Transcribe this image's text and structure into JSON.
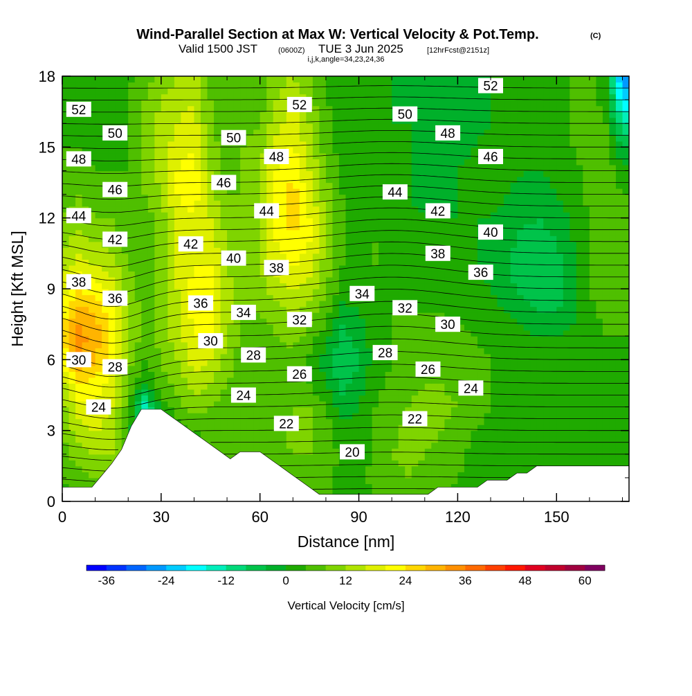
{
  "title": {
    "main": "Wind-Parallel Section at Max W: Vertical Velocity & Pot.Temp.",
    "copyright": "(C)",
    "valid_prefix": "Valid 1500 JST",
    "valid_zulu": "(0600Z)",
    "valid_date": "TUE 3 Jun 2025",
    "forecast": "[12hrFcst@2151z]",
    "indices": "i,j,k,angle=34,23,24,36"
  },
  "chart_data": {
    "type": "contour-section",
    "xlabel": "Distance [nm]",
    "ylabel": "Height [Kft MSL]",
    "xlim": [
      0,
      172
    ],
    "ylim": [
      0,
      18
    ],
    "x_ticks": [
      0,
      30,
      60,
      90,
      120,
      150
    ],
    "y_ticks": [
      0,
      3,
      6,
      9,
      12,
      15,
      18
    ],
    "colorbar": {
      "label": "Vertical Velocity [cm/s]",
      "tick_labels": [
        "-36",
        "-24",
        "-12",
        "0",
        "12",
        "24",
        "36",
        "48",
        "60"
      ],
      "tick_values": [
        -36,
        -24,
        -12,
        0,
        12,
        24,
        36,
        48,
        60
      ],
      "bins": [
        -40,
        -36,
        -32,
        -28,
        -24,
        -20,
        -16,
        -12,
        -8,
        -4,
        0,
        4,
        8,
        12,
        16,
        20,
        24,
        28,
        32,
        36,
        40,
        44,
        48,
        52,
        56,
        60,
        64
      ],
      "colors": [
        "#0000ff",
        "#0033ff",
        "#0066ff",
        "#0099ff",
        "#00ccff",
        "#00ffff",
        "#00eebb",
        "#00d97a",
        "#00c34a",
        "#00b02a",
        "#1faa00",
        "#4fbf00",
        "#7fd400",
        "#b0e400",
        "#dff000",
        "#ffff00",
        "#ffd700",
        "#ffb400",
        "#ff9000",
        "#ff6a00",
        "#ff4000",
        "#ff1800",
        "#e00020",
        "#c0002c",
        "#a00040",
        "#800060"
      ]
    },
    "vertical_velocity_cm_s": {
      "x": [
        0,
        5,
        10,
        15,
        20,
        25,
        30,
        35,
        40,
        45,
        50,
        55,
        60,
        65,
        70,
        75,
        80,
        85,
        90,
        95,
        100,
        105,
        110,
        115,
        120,
        125,
        130,
        135,
        140,
        145,
        150,
        155,
        160,
        165,
        170
      ],
      "y": [
        0,
        1,
        2,
        3,
        4,
        5,
        6,
        7,
        8,
        9,
        10,
        11,
        12,
        13,
        14,
        15,
        16,
        17,
        18
      ],
      "values": [
        [
          2,
          2,
          3,
          2,
          2,
          0,
          0,
          0,
          0,
          2,
          4,
          4,
          4,
          5,
          4,
          4,
          4,
          3,
          3,
          4,
          6,
          6,
          5,
          4,
          3,
          2,
          2,
          1,
          1,
          1,
          1,
          1,
          1,
          1,
          1
        ],
        [
          4,
          6,
          8,
          8,
          6,
          0,
          0,
          0,
          0,
          3,
          4,
          4,
          5,
          6,
          6,
          6,
          5,
          3,
          3,
          5,
          7,
          8,
          7,
          6,
          4,
          3,
          2,
          1,
          1,
          1,
          1,
          1,
          1,
          1,
          1
        ],
        [
          6,
          10,
          12,
          12,
          6,
          -10,
          0,
          0,
          0,
          4,
          5,
          5,
          6,
          7,
          8,
          8,
          6,
          3,
          2,
          5,
          8,
          9,
          8,
          7,
          5,
          3,
          2,
          2,
          1,
          1,
          1,
          1,
          1,
          1,
          1
        ],
        [
          8,
          14,
          16,
          14,
          4,
          -20,
          -2,
          2,
          4,
          6,
          6,
          6,
          6,
          7,
          9,
          9,
          6,
          2,
          1,
          4,
          7,
          9,
          9,
          8,
          6,
          4,
          3,
          2,
          1,
          1,
          1,
          1,
          1,
          1,
          1
        ],
        [
          10,
          18,
          20,
          16,
          6,
          -14,
          2,
          6,
          10,
          8,
          6,
          6,
          6,
          6,
          8,
          8,
          4,
          -2,
          0,
          4,
          6,
          8,
          10,
          9,
          8,
          6,
          4,
          2,
          1,
          1,
          1,
          1,
          1,
          1,
          1
        ],
        [
          14,
          24,
          22,
          18,
          8,
          0,
          6,
          10,
          14,
          12,
          8,
          6,
          6,
          6,
          6,
          4,
          0,
          -6,
          -2,
          3,
          5,
          6,
          8,
          8,
          7,
          6,
          4,
          3,
          2,
          1,
          1,
          2,
          2,
          2,
          2
        ],
        [
          20,
          32,
          28,
          22,
          10,
          4,
          8,
          12,
          18,
          16,
          10,
          6,
          6,
          6,
          6,
          3,
          -2,
          -8,
          -4,
          2,
          4,
          5,
          6,
          6,
          6,
          5,
          4,
          3,
          2,
          1,
          1,
          2,
          3,
          3,
          3
        ],
        [
          24,
          34,
          30,
          24,
          12,
          6,
          10,
          14,
          20,
          20,
          12,
          6,
          6,
          8,
          10,
          6,
          2,
          -6,
          -2,
          2,
          4,
          4,
          5,
          5,
          5,
          4,
          3,
          2,
          1,
          0,
          0,
          1,
          3,
          4,
          4
        ],
        [
          22,
          30,
          28,
          22,
          12,
          6,
          10,
          14,
          22,
          22,
          14,
          8,
          8,
          10,
          12,
          10,
          6,
          -2,
          0,
          2,
          4,
          4,
          4,
          4,
          3,
          2,
          1,
          0,
          -2,
          -4,
          -4,
          -1,
          3,
          5,
          6
        ],
        [
          18,
          24,
          22,
          18,
          10,
          6,
          10,
          16,
          22,
          22,
          14,
          8,
          10,
          14,
          16,
          14,
          8,
          2,
          2,
          3,
          4,
          3,
          3,
          3,
          2,
          1,
          0,
          -2,
          -6,
          -8,
          -6,
          -2,
          4,
          6,
          7
        ],
        [
          14,
          18,
          16,
          14,
          8,
          6,
          10,
          16,
          20,
          20,
          12,
          8,
          12,
          18,
          20,
          18,
          10,
          4,
          3,
          4,
          4,
          3,
          2,
          2,
          1,
          0,
          -1,
          -3,
          -8,
          -8,
          -6,
          -2,
          4,
          6,
          7
        ],
        [
          10,
          14,
          12,
          10,
          6,
          6,
          10,
          16,
          20,
          18,
          12,
          8,
          12,
          20,
          24,
          20,
          12,
          4,
          3,
          4,
          3,
          2,
          1,
          1,
          0,
          0,
          -1,
          -2,
          -6,
          -6,
          -4,
          0,
          4,
          6,
          6
        ],
        [
          8,
          10,
          8,
          8,
          4,
          6,
          10,
          18,
          20,
          16,
          10,
          8,
          12,
          22,
          26,
          20,
          12,
          4,
          2,
          3,
          2,
          1,
          0,
          0,
          0,
          0,
          0,
          -1,
          -3,
          -4,
          -2,
          1,
          4,
          6,
          5
        ],
        [
          6,
          8,
          6,
          6,
          4,
          8,
          12,
          20,
          22,
          14,
          8,
          8,
          12,
          22,
          26,
          18,
          10,
          4,
          2,
          2,
          1,
          0,
          -1,
          -1,
          0,
          1,
          1,
          0,
          -1,
          -2,
          0,
          2,
          5,
          6,
          4
        ],
        [
          4,
          6,
          4,
          4,
          4,
          8,
          14,
          20,
          22,
          12,
          6,
          8,
          12,
          20,
          24,
          16,
          8,
          3,
          2,
          2,
          1,
          0,
          -1,
          -2,
          0,
          1,
          2,
          1,
          0,
          0,
          1,
          3,
          5,
          6,
          2
        ],
        [
          4,
          4,
          3,
          3,
          4,
          10,
          14,
          18,
          20,
          10,
          6,
          8,
          10,
          18,
          20,
          14,
          6,
          2,
          2,
          1,
          1,
          0,
          -1,
          -2,
          -1,
          0,
          1,
          1,
          1,
          1,
          2,
          4,
          6,
          6,
          -4
        ],
        [
          3,
          3,
          2,
          2,
          4,
          10,
          14,
          16,
          18,
          8,
          5,
          6,
          8,
          14,
          18,
          12,
          6,
          2,
          1,
          1,
          0,
          0,
          -1,
          -2,
          -2,
          -1,
          0,
          1,
          1,
          2,
          3,
          4,
          6,
          4,
          -12
        ],
        [
          2,
          2,
          2,
          2,
          4,
          8,
          12,
          14,
          16,
          8,
          4,
          5,
          6,
          12,
          16,
          10,
          4,
          2,
          1,
          0,
          0,
          -1,
          -1,
          -2,
          -2,
          -1,
          0,
          1,
          2,
          2,
          3,
          4,
          6,
          2,
          -20
        ],
        [
          2,
          2,
          1,
          1,
          3,
          6,
          10,
          12,
          14,
          6,
          4,
          4,
          5,
          10,
          12,
          8,
          4,
          1,
          1,
          0,
          0,
          -1,
          -1,
          -2,
          -2,
          -1,
          0,
          1,
          2,
          2,
          3,
          4,
          5,
          0,
          -28
        ]
      ]
    },
    "terrain_kft": {
      "x": [
        0,
        3,
        6,
        9,
        12,
        15,
        18,
        21,
        24,
        27,
        30,
        33,
        36,
        39,
        42,
        45,
        48,
        51,
        54,
        57,
        60,
        63,
        66,
        69,
        72,
        75,
        78,
        81,
        84,
        87,
        90,
        93,
        96,
        99,
        102,
        105,
        108,
        111,
        114,
        117,
        120,
        123,
        126,
        129,
        132,
        135,
        138,
        141,
        144,
        147,
        150,
        153,
        156,
        159,
        162,
        165,
        168,
        172
      ],
      "height": [
        0.6,
        0.6,
        0.6,
        0.6,
        1.1,
        1.6,
        2.2,
        3.2,
        3.9,
        3.9,
        3.9,
        3.6,
        3.3,
        3.0,
        2.7,
        2.4,
        2.1,
        1.8,
        2.1,
        2.1,
        2.1,
        1.8,
        1.5,
        1.2,
        0.9,
        0.6,
        0.3,
        0.3,
        0.3,
        0.3,
        0.3,
        0.3,
        0.3,
        0.3,
        0.3,
        0.3,
        0.3,
        0.3,
        0.6,
        0.6,
        0.6,
        0.6,
        0.6,
        0.9,
        0.9,
        0.9,
        1.2,
        1.2,
        1.5,
        1.5,
        1.5,
        1.5,
        1.5,
        1.5,
        1.5,
        1.5,
        1.5,
        1.5
      ]
    },
    "potential_temperature_contours": {
      "interval": 2,
      "levels": [
        18,
        19,
        20,
        21,
        22,
        23,
        24,
        25,
        26,
        27,
        28,
        29,
        30,
        31,
        32,
        33,
        34,
        35,
        36,
        37,
        38,
        39,
        40,
        41,
        42,
        43,
        44,
        45,
        46,
        47,
        48,
        49,
        50,
        51,
        52,
        53,
        54
      ],
      "labels": [
        {
          "text": "52",
          "x": 5,
          "y": 16.6
        },
        {
          "text": "50",
          "x": 16,
          "y": 15.6
        },
        {
          "text": "48",
          "x": 5,
          "y": 14.5
        },
        {
          "text": "46",
          "x": 16,
          "y": 13.2
        },
        {
          "text": "44",
          "x": 5,
          "y": 12.1
        },
        {
          "text": "42",
          "x": 16,
          "y": 11.1
        },
        {
          "text": "38",
          "x": 5,
          "y": 9.3
        },
        {
          "text": "36",
          "x": 16,
          "y": 8.6
        },
        {
          "text": "30",
          "x": 5,
          "y": 6.0
        },
        {
          "text": "28",
          "x": 16,
          "y": 5.7
        },
        {
          "text": "24",
          "x": 11,
          "y": 4.0
        },
        {
          "text": "42",
          "x": 39,
          "y": 10.9
        },
        {
          "text": "36",
          "x": 42,
          "y": 8.4
        },
        {
          "text": "30",
          "x": 45,
          "y": 6.8
        },
        {
          "text": "50",
          "x": 52,
          "y": 15.4
        },
        {
          "text": "46",
          "x": 49,
          "y": 13.5
        },
        {
          "text": "40",
          "x": 52,
          "y": 10.3
        },
        {
          "text": "34",
          "x": 55,
          "y": 8.0
        },
        {
          "text": "28",
          "x": 58,
          "y": 6.2
        },
        {
          "text": "24",
          "x": 55,
          "y": 4.5
        },
        {
          "text": "48",
          "x": 65,
          "y": 14.6
        },
        {
          "text": "44",
          "x": 62,
          "y": 12.3
        },
        {
          "text": "38",
          "x": 65,
          "y": 9.9
        },
        {
          "text": "32",
          "x": 72,
          "y": 7.7
        },
        {
          "text": "26",
          "x": 72,
          "y": 5.4
        },
        {
          "text": "22",
          "x": 68,
          "y": 3.3
        },
        {
          "text": "52",
          "x": 72,
          "y": 16.8
        },
        {
          "text": "20",
          "x": 88,
          "y": 2.1
        },
        {
          "text": "34",
          "x": 91,
          "y": 8.8
        },
        {
          "text": "28",
          "x": 98,
          "y": 6.3
        },
        {
          "text": "44",
          "x": 101,
          "y": 13.1
        },
        {
          "text": "32",
          "x": 104,
          "y": 8.2
        },
        {
          "text": "22",
          "x": 107,
          "y": 3.5
        },
        {
          "text": "50",
          "x": 104,
          "y": 16.4
        },
        {
          "text": "26",
          "x": 111,
          "y": 5.6
        },
        {
          "text": "42",
          "x": 114,
          "y": 12.3
        },
        {
          "text": "38",
          "x": 114,
          "y": 10.5
        },
        {
          "text": "30",
          "x": 117,
          "y": 7.5
        },
        {
          "text": "48",
          "x": 117,
          "y": 15.6
        },
        {
          "text": "24",
          "x": 124,
          "y": 4.8
        },
        {
          "text": "36",
          "x": 127,
          "y": 9.7
        },
        {
          "text": "40",
          "x": 130,
          "y": 11.4
        },
        {
          "text": "46",
          "x": 130,
          "y": 14.6
        },
        {
          "text": "52",
          "x": 130,
          "y": 17.6
        }
      ]
    }
  }
}
